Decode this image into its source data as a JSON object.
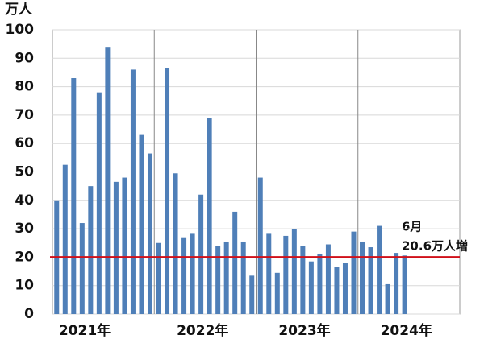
{
  "chart_data": {
    "type": "bar",
    "y_unit": "万人",
    "categories": [
      null,
      null,
      null,
      null,
      null,
      null,
      null,
      null,
      null,
      null,
      null,
      null,
      null,
      null,
      null,
      null,
      null,
      null,
      null,
      null,
      null,
      null,
      null,
      null,
      null,
      null,
      null,
      null,
      null,
      null,
      null,
      null,
      null,
      null,
      null,
      null,
      null,
      null,
      null,
      null,
      null,
      null
    ],
    "values": [
      40,
      52.5,
      83,
      32,
      45,
      78,
      94,
      46.5,
      48,
      86,
      63,
      56.5,
      25,
      86.5,
      49.5,
      27,
      28.5,
      42,
      69,
      24,
      25.5,
      36,
      25.5,
      13.5,
      48,
      28.5,
      14.5,
      27.5,
      30,
      24,
      18.5,
      21,
      24.5,
      16.5,
      18,
      29,
      25.5,
      23.5,
      31,
      10.5,
      21.5,
      20.6
    ],
    "year_labels": [
      "2021年",
      "2022年",
      "2023年",
      "2024年"
    ],
    "color": "#4f7fb8",
    "ylim": [
      0,
      100
    ],
    "yticks": [
      0,
      10,
      20,
      30,
      40,
      50,
      60,
      70,
      80,
      90,
      100
    ],
    "grid": true,
    "reference_line": {
      "value": 20,
      "color": "#d0101a"
    },
    "annotations": [
      "6月",
      "20.6万人増"
    ]
  }
}
